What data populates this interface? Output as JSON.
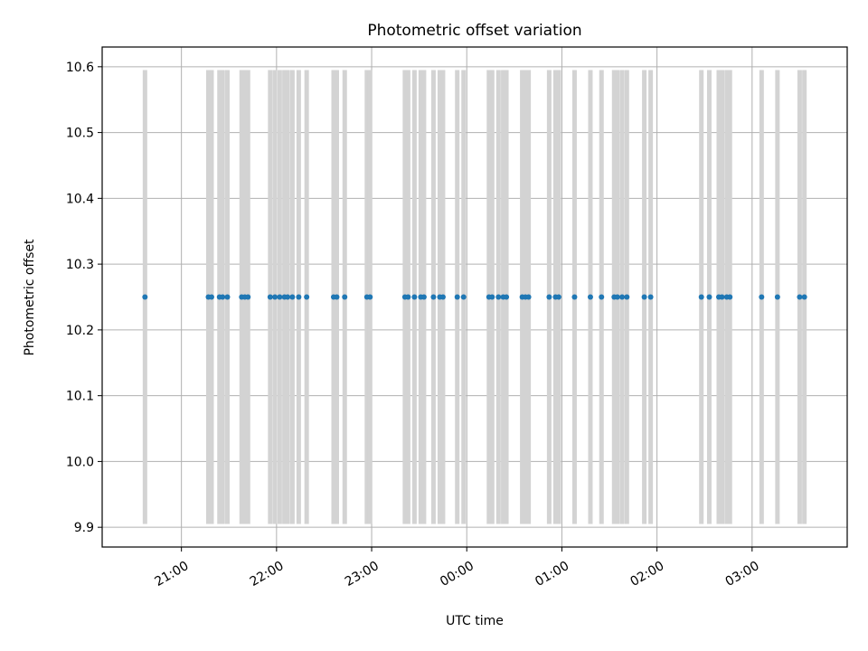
{
  "chart_data": {
    "type": "scatter",
    "title": "Photometric offset variation",
    "xlabel": "UTC time",
    "ylabel": "Photometric offset",
    "x_axis": {
      "kind": "time",
      "range": [
        "20:10",
        "04:00"
      ],
      "tick_labels": [
        "21:00",
        "22:00",
        "23:00",
        "00:00",
        "01:00",
        "02:00",
        "03:00"
      ],
      "tick_rotation_deg": 30
    },
    "ylim": [
      9.87,
      10.63
    ],
    "y_ticks": [
      "9.9",
      "10.0",
      "10.1",
      "10.2",
      "10.3",
      "10.4",
      "10.5",
      "10.6"
    ],
    "grid": true,
    "colors": {
      "points": "#1f77b4",
      "error_bars": "#d3d3d3"
    },
    "series": [
      {
        "x": [
          "20:37",
          "21:17",
          "21:19",
          "21:24",
          "21:26",
          "21:29",
          "21:38",
          "21:40",
          "21:42",
          "21:56",
          "21:59",
          "22:02",
          "22:05",
          "22:07",
          "22:10",
          "22:14",
          "22:19",
          "22:36",
          "22:38",
          "22:43",
          "22:57",
          "22:59",
          "23:21",
          "23:23",
          "23:27",
          "23:31",
          "23:33",
          "23:39",
          "23:43",
          "23:45",
          "23:54",
          "23:58",
          "24:14",
          "24:16",
          "24:20",
          "24:23",
          "24:25",
          "24:35",
          "24:37",
          "24:39",
          "24:52",
          "24:56",
          "24:58",
          "25:08",
          "25:18",
          "25:25",
          "25:33",
          "25:35",
          "25:38",
          "25:41",
          "25:52",
          "25:56",
          "26:28",
          "26:33",
          "26:39",
          "26:41",
          "26:44",
          "26:46",
          "27:06",
          "27:16",
          "27:30",
          "27:33"
        ],
        "y": [
          10.25,
          10.25,
          10.25,
          10.25,
          10.25,
          10.25,
          10.25,
          10.25,
          10.25,
          10.25,
          10.25,
          10.25,
          10.25,
          10.25,
          10.25,
          10.25,
          10.25,
          10.25,
          10.25,
          10.25,
          10.25,
          10.25,
          10.25,
          10.25,
          10.25,
          10.25,
          10.25,
          10.25,
          10.25,
          10.25,
          10.25,
          10.25,
          10.25,
          10.25,
          10.25,
          10.25,
          10.25,
          10.25,
          10.25,
          10.25,
          10.25,
          10.25,
          10.25,
          10.25,
          10.25,
          10.25,
          10.25,
          10.25,
          10.25,
          10.25,
          10.25,
          10.25,
          10.25,
          10.25,
          10.25,
          10.25,
          10.25,
          10.25,
          10.25,
          10.25,
          10.25,
          10.25
        ],
        "y_error_range": [
          9.905,
          10.595
        ]
      }
    ]
  }
}
